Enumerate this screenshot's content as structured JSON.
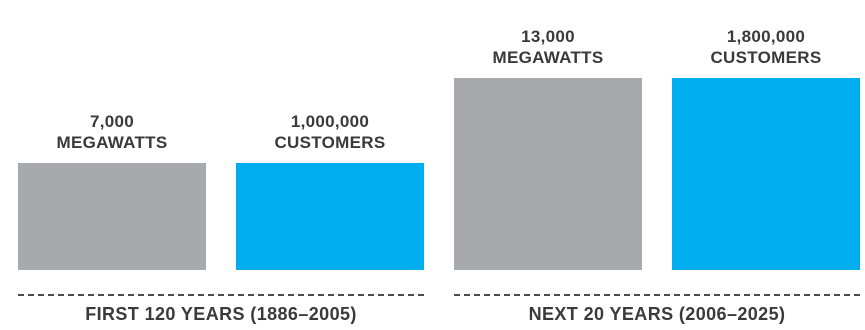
{
  "chart_data": {
    "type": "bar",
    "groups": [
      {
        "period_label": "FIRST 120 YEARS (1886–2005)",
        "bars": [
          {
            "value": 7000,
            "value_text": "7,000",
            "unit_text": "MEGAWATTS",
            "color": "#a7a9ac"
          },
          {
            "value": 1000000,
            "value_text": "1,000,000",
            "unit_text": "CUSTOMERS",
            "color": "#00aeef"
          }
        ]
      },
      {
        "period_label": "NEXT 20 YEARS (2006–2025)",
        "bars": [
          {
            "value": 13000,
            "value_text": "13,000",
            "unit_text": "MEGAWATTS",
            "color": "#a7a9ac"
          },
          {
            "value": 1800000,
            "value_text": "1,800,000",
            "unit_text": "CUSTOMERS",
            "color": "#00aeef"
          }
        ]
      }
    ]
  }
}
